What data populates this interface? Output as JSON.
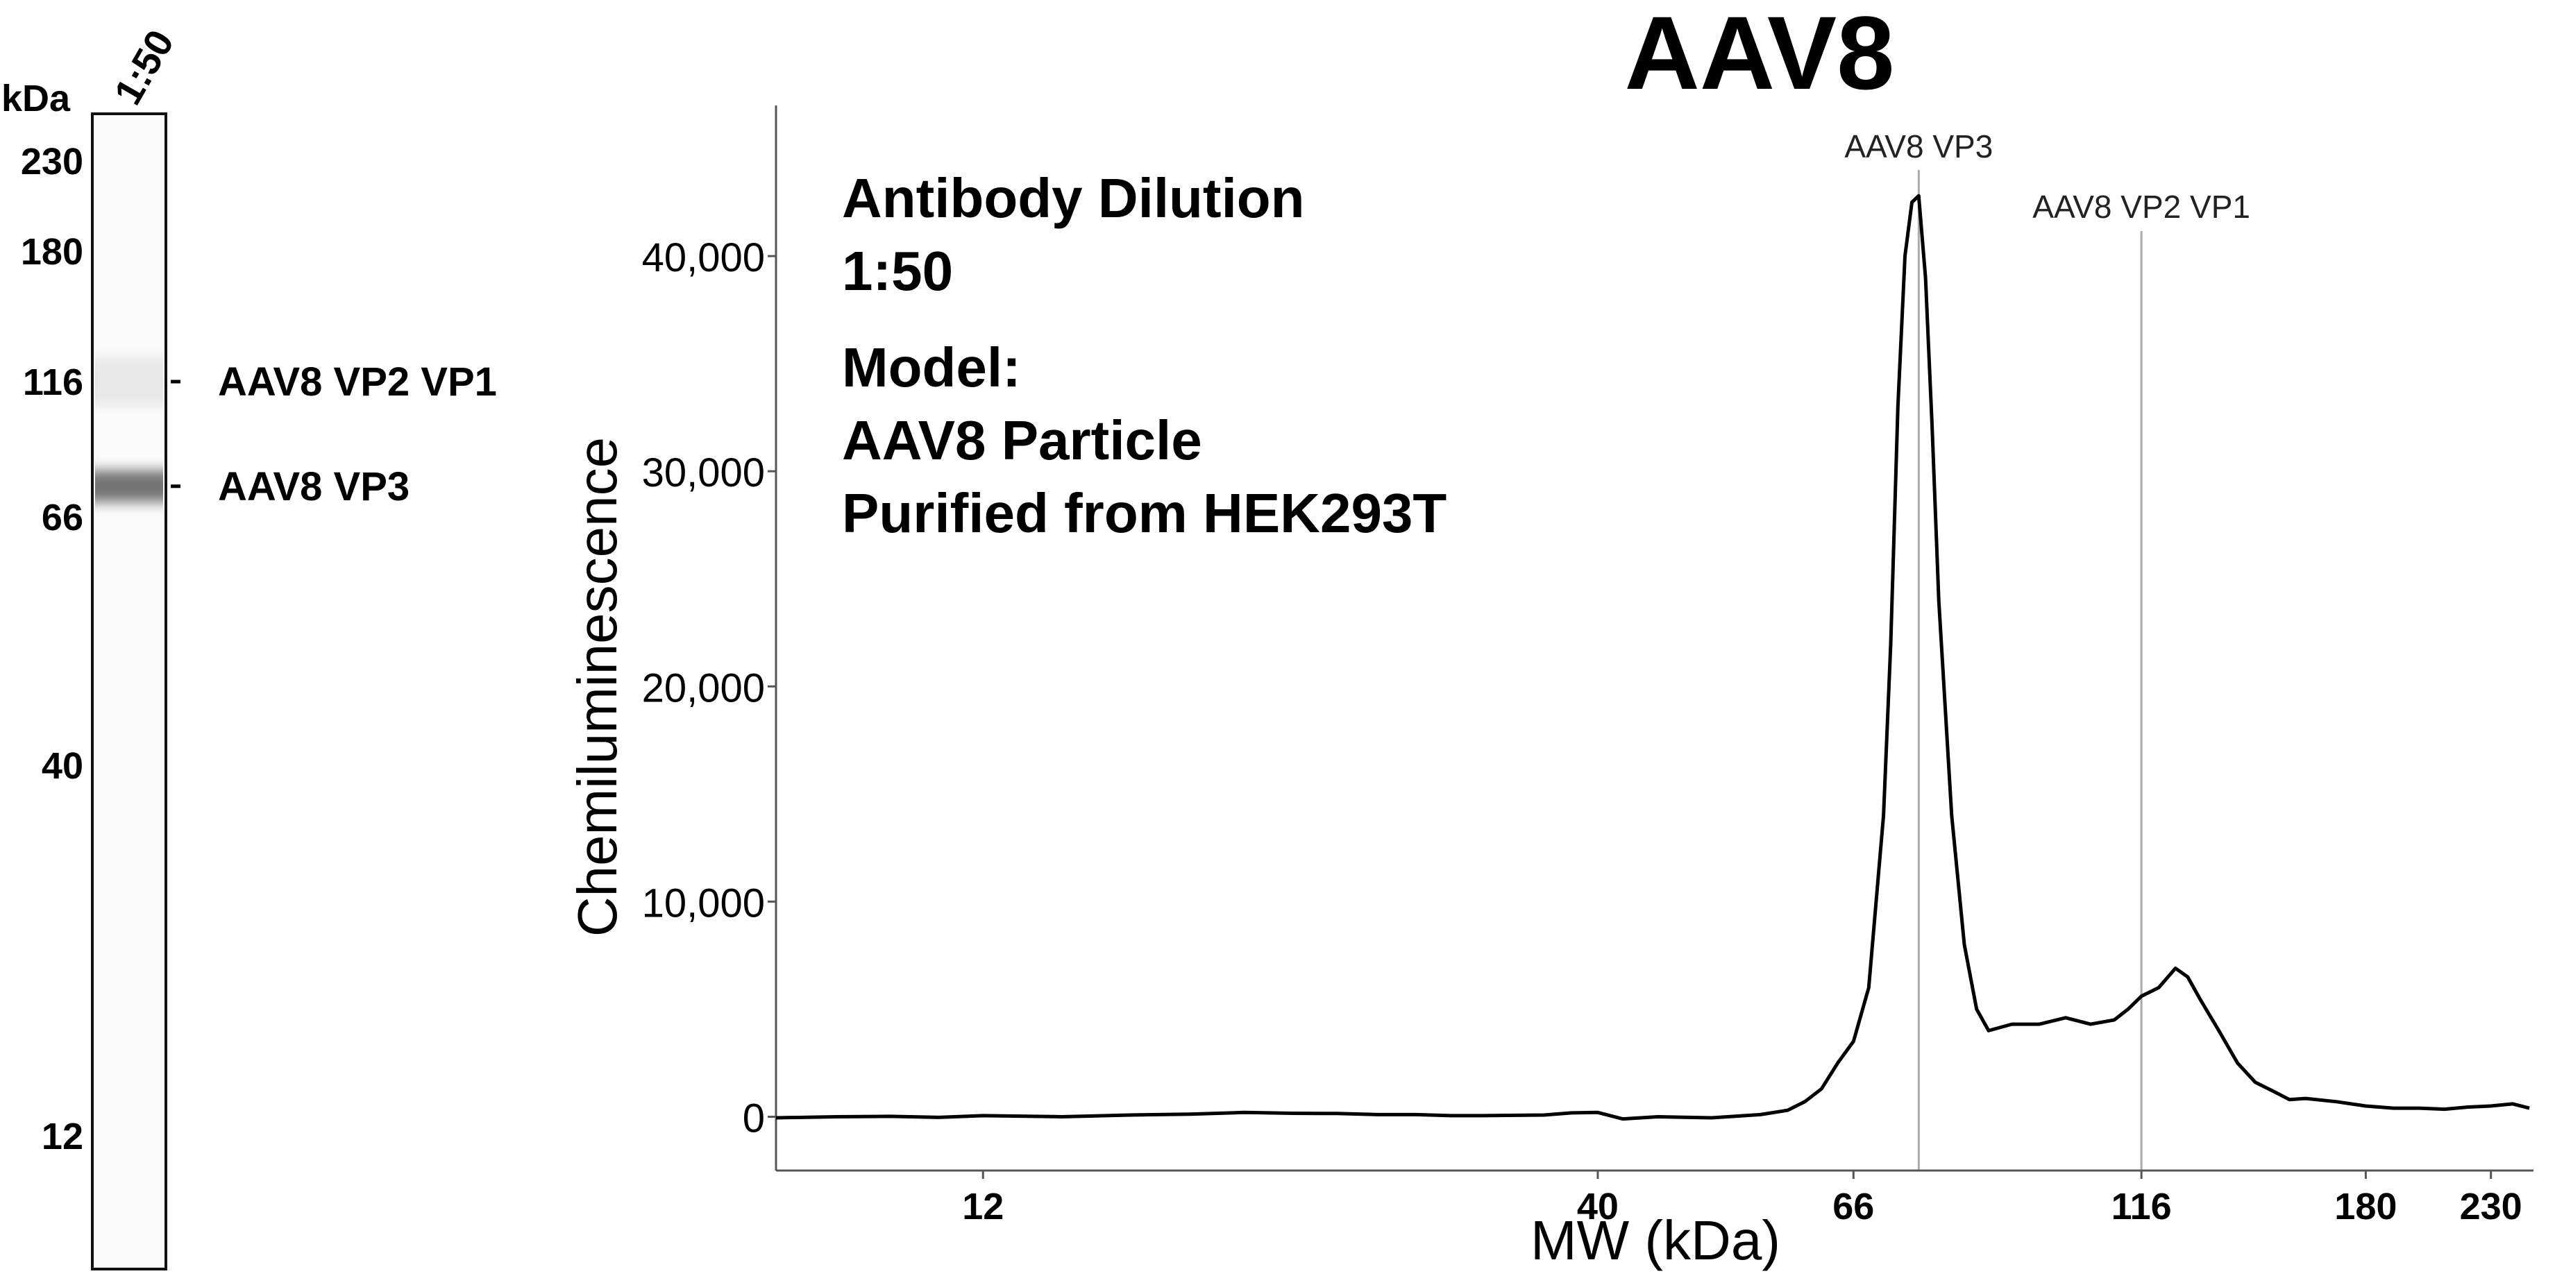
{
  "chart_data": [
    {
      "type": "gel-lane",
      "unit_label": "kDa",
      "lane_label": "1:50",
      "ladder": [
        {
          "label": "230",
          "mw": 230
        },
        {
          "label": "180",
          "mw": 180
        },
        {
          "label": "116",
          "mw": 116
        },
        {
          "label": "66",
          "mw": 66
        },
        {
          "label": "40",
          "mw": 40
        },
        {
          "label": "12",
          "mw": 12
        }
      ],
      "bands": [
        {
          "label": "AAV8 VP2 VP1",
          "mw": 116,
          "intensity": 0.12
        },
        {
          "label": "AAV8 VP3",
          "mw": 75,
          "intensity": 0.7
        }
      ]
    },
    {
      "type": "line",
      "title": "AAV8",
      "xlabel": "MW (kDa)",
      "ylabel": "Chemiluminescence",
      "x_scale": "log",
      "xlim": [
        8,
        250
      ],
      "ylim": [
        -2500,
        47000
      ],
      "xticks": [
        {
          "label": "12",
          "value": 12
        },
        {
          "label": "40",
          "value": 40
        },
        {
          "label": "66",
          "value": 66
        },
        {
          "label": "116",
          "value": 116
        },
        {
          "label": "180",
          "value": 180
        },
        {
          "label": "230",
          "value": 230
        }
      ],
      "yticks": [
        {
          "label": "0",
          "value": 0
        },
        {
          "label": "10,000",
          "value": 10000
        },
        {
          "label": "20,000",
          "value": 20000
        },
        {
          "label": "30,000",
          "value": 30000
        },
        {
          "label": "40,000",
          "value": 40000
        }
      ],
      "annotation_lines": [
        {
          "label": "AAV8 VP3",
          "x": 75
        },
        {
          "label": "AAV8 VP2 VP1",
          "x": 116
        }
      ],
      "text_block": {
        "line1": "Antibody Dilution",
        "line2": "1:50",
        "line3": "Model:",
        "line4": "AAV8 Particle",
        "line5": "Purified from HEK293T"
      },
      "series": [
        {
          "values": [
            [
              8.0,
              -50
            ],
            [
              9.0,
              0
            ],
            [
              10.0,
              20
            ],
            [
              11.0,
              -30
            ],
            [
              12.0,
              50
            ],
            [
              14.0,
              0
            ],
            [
              16.0,
              80
            ],
            [
              18.0,
              120
            ],
            [
              20.0,
              200
            ],
            [
              22.0,
              160
            ],
            [
              24.0,
              150
            ],
            [
              26.0,
              100
            ],
            [
              28.0,
              100
            ],
            [
              30.0,
              50
            ],
            [
              32.0,
              50
            ],
            [
              36.0,
              80
            ],
            [
              38.0,
              180
            ],
            [
              40.0,
              200
            ],
            [
              42.0,
              -100
            ],
            [
              45.0,
              0
            ],
            [
              50.0,
              -50
            ],
            [
              55.0,
              100
            ],
            [
              58.0,
              300
            ],
            [
              60.0,
              700
            ],
            [
              62.0,
              1300
            ],
            [
              64.0,
              2500
            ],
            [
              66.0,
              3500
            ],
            [
              68.0,
              6000
            ],
            [
              70.0,
              14000
            ],
            [
              71.0,
              22000
            ],
            [
              72.0,
              33000
            ],
            [
              73.0,
              40000
            ],
            [
              74.0,
              42500
            ],
            [
              75.0,
              42800
            ],
            [
              76.0,
              39000
            ],
            [
              77.0,
              32000
            ],
            [
              78.0,
              24000
            ],
            [
              80.0,
              14000
            ],
            [
              82.0,
              8000
            ],
            [
              84.0,
              5000
            ],
            [
              86.0,
              4000
            ],
            [
              90.0,
              4300
            ],
            [
              95.0,
              4300
            ],
            [
              100.0,
              4600
            ],
            [
              105.0,
              4300
            ],
            [
              110.0,
              4500
            ],
            [
              113.0,
              5000
            ],
            [
              116.0,
              5600
            ],
            [
              120.0,
              6000
            ],
            [
              124.0,
              6900
            ],
            [
              127.0,
              6500
            ],
            [
              130.0,
              5500
            ],
            [
              135.0,
              4000
            ],
            [
              140.0,
              2500
            ],
            [
              145.0,
              1600
            ],
            [
              150.0,
              1200
            ],
            [
              155.0,
              800
            ],
            [
              160.0,
              850
            ],
            [
              170.0,
              700
            ],
            [
              180.0,
              500
            ],
            [
              190.0,
              400
            ],
            [
              200.0,
              400
            ],
            [
              210.0,
              350
            ],
            [
              220.0,
              450
            ],
            [
              230.0,
              500
            ],
            [
              240.0,
              600
            ],
            [
              248.0,
              400
            ]
          ]
        }
      ]
    }
  ]
}
